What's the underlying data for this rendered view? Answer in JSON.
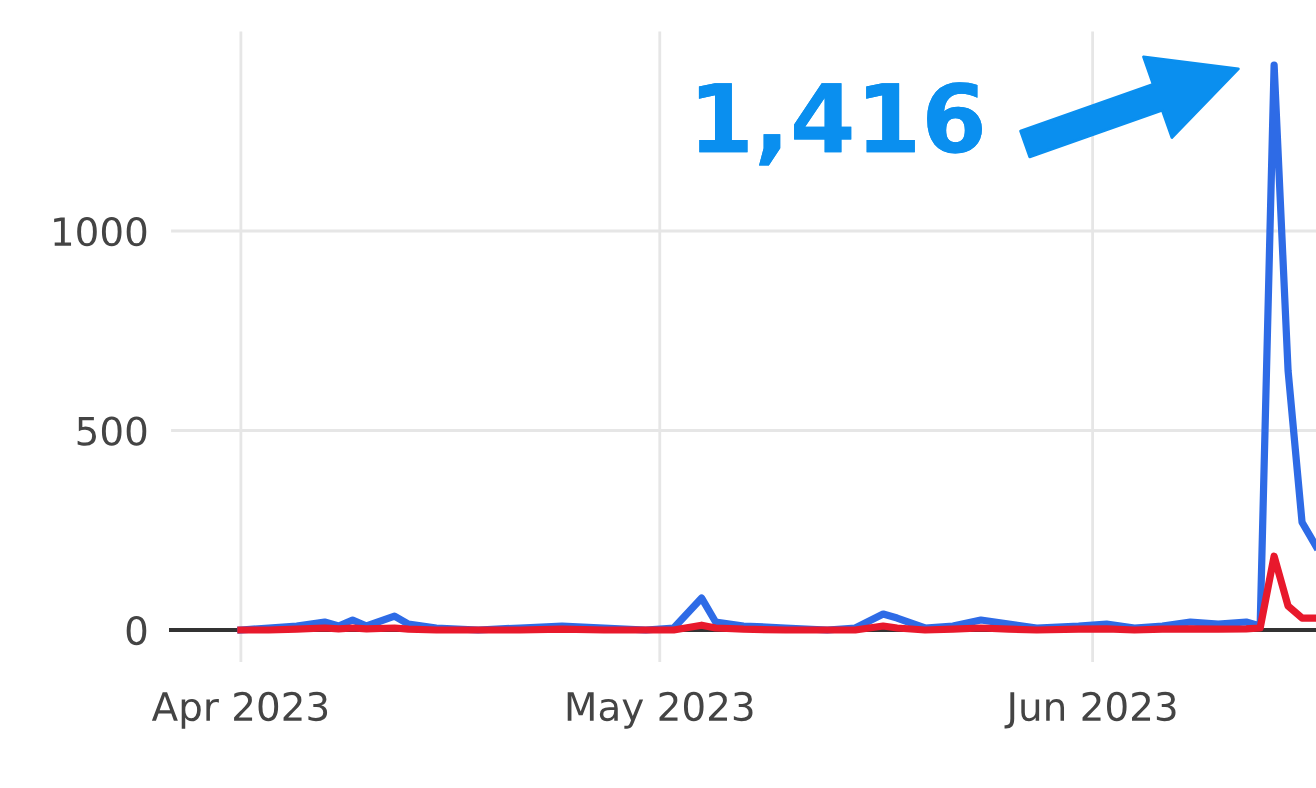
{
  "chart_data": {
    "type": "line",
    "x": [
      "2023-04-01",
      "2023-04-03",
      "2023-04-05",
      "2023-04-07",
      "2023-04-08",
      "2023-04-09",
      "2023-04-10",
      "2023-04-12",
      "2023-04-13",
      "2023-04-15",
      "2023-04-18",
      "2023-04-21",
      "2023-04-24",
      "2023-04-27",
      "2023-04-30",
      "2023-05-02",
      "2023-05-04",
      "2023-05-05",
      "2023-05-07",
      "2023-05-10",
      "2023-05-13",
      "2023-05-15",
      "2023-05-17",
      "2023-05-18",
      "2023-05-20",
      "2023-05-22",
      "2023-05-24",
      "2023-05-26",
      "2023-05-28",
      "2023-05-31",
      "2023-06-02",
      "2023-06-04",
      "2023-06-06",
      "2023-06-08",
      "2023-06-10",
      "2023-06-12",
      "2023-06-13",
      "2023-06-14",
      "2023-06-15",
      "2023-06-16",
      "2023-06-17"
    ],
    "series": [
      {
        "color": "#2e6be6",
        "values": [
          0,
          5,
          10,
          20,
          10,
          25,
          10,
          35,
          15,
          5,
          0,
          5,
          10,
          5,
          0,
          5,
          80,
          20,
          10,
          5,
          0,
          5,
          40,
          30,
          5,
          10,
          25,
          15,
          5,
          10,
          15,
          5,
          10,
          20,
          15,
          20,
          10,
          1416,
          650,
          270,
          210
        ]
      },
      {
        "color": "#e8192c",
        "values": [
          0,
          0,
          2,
          5,
          3,
          5,
          3,
          5,
          2,
          0,
          0,
          0,
          2,
          0,
          0,
          0,
          12,
          5,
          2,
          0,
          0,
          0,
          10,
          5,
          0,
          2,
          5,
          2,
          0,
          2,
          3,
          0,
          2,
          3,
          2,
          3,
          5,
          185,
          60,
          30,
          30
        ]
      }
    ],
    "xlim": [
      "2023-03-27",
      "2023-06-17"
    ],
    "ylim": [
      -80,
      1500
    ],
    "xticks": [
      {
        "value": "2023-04-01",
        "label": "Apr 2023"
      },
      {
        "value": "2023-05-01",
        "label": "May 2023"
      },
      {
        "value": "2023-06-01",
        "label": "Jun 2023"
      }
    ],
    "yticks": [
      0,
      500,
      1000
    ],
    "grid": true,
    "marker": "none",
    "line_style": "solid",
    "annotations": [
      "1,416"
    ]
  }
}
